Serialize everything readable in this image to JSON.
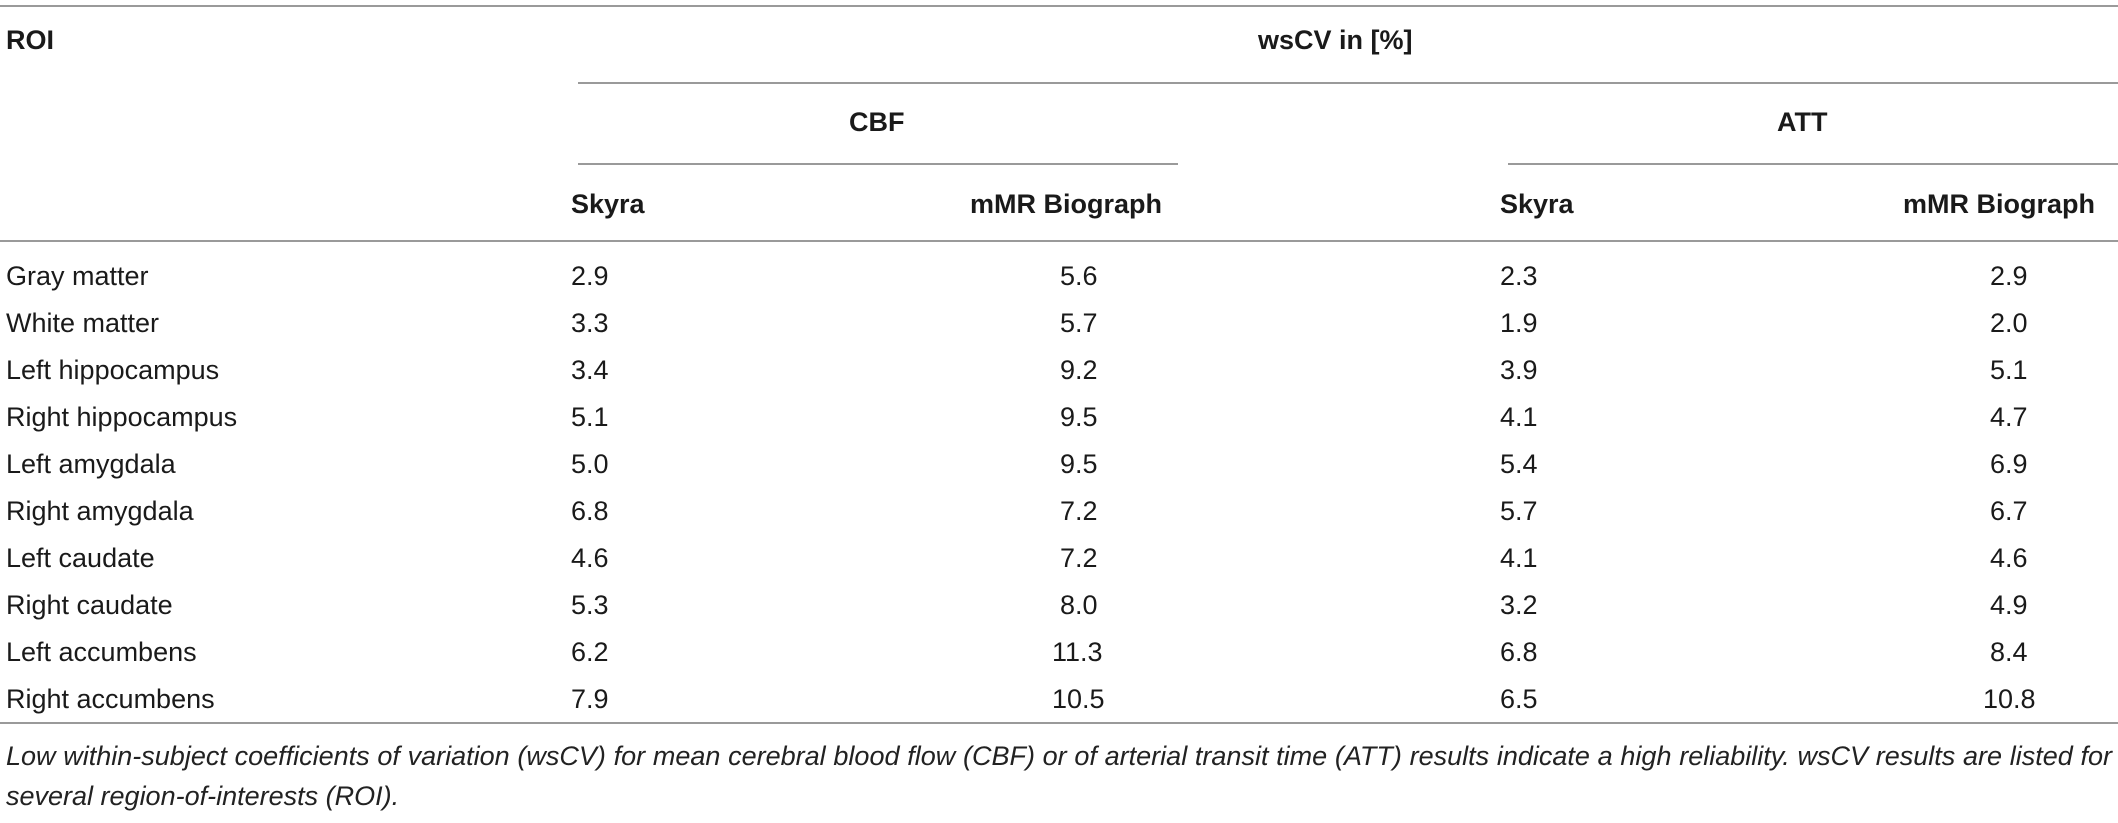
{
  "table": {
    "roi_header": "ROI",
    "group_header": "wsCV in [%]",
    "cbf_header": "CBF",
    "att_header": "ATT",
    "subheaders": [
      "Skyra",
      "mMR Biograph",
      "Skyra",
      "mMR Biograph"
    ],
    "rows": [
      {
        "roi": "Gray matter",
        "values": [
          "2.9",
          "5.6",
          "2.3",
          "2.9"
        ]
      },
      {
        "roi": "White matter",
        "values": [
          "3.3",
          "5.7",
          "1.9",
          "2.0"
        ]
      },
      {
        "roi": "Left hippocampus",
        "values": [
          "3.4",
          "9.2",
          "3.9",
          "5.1"
        ]
      },
      {
        "roi": "Right hippocampus",
        "values": [
          "5.1",
          "9.5",
          "4.1",
          "4.7"
        ]
      },
      {
        "roi": "Left amygdala",
        "values": [
          "5.0",
          "9.5",
          "5.4",
          "6.9"
        ]
      },
      {
        "roi": "Right amygdala",
        "values": [
          "6.8",
          "7.2",
          "5.7",
          "6.7"
        ]
      },
      {
        "roi": "Left caudate",
        "values": [
          "4.6",
          "7.2",
          "4.1",
          "4.6"
        ]
      },
      {
        "roi": "Right caudate",
        "values": [
          "5.3",
          "8.0",
          "3.2",
          "4.9"
        ]
      },
      {
        "roi": "Left accumbens",
        "values": [
          "6.2",
          "11.3",
          "6.8",
          "8.4"
        ]
      },
      {
        "roi": "Right accumbens",
        "values": [
          "7.9",
          "10.5",
          "6.5",
          "10.8"
        ]
      }
    ]
  },
  "caption": "Low within-subject coefficients of variation (wsCV) for mean cerebral blood flow (CBF) or of arterial transit time (ATT) results indicate a high reliability. wsCV results are listed for several region-of-interests (ROI)."
}
